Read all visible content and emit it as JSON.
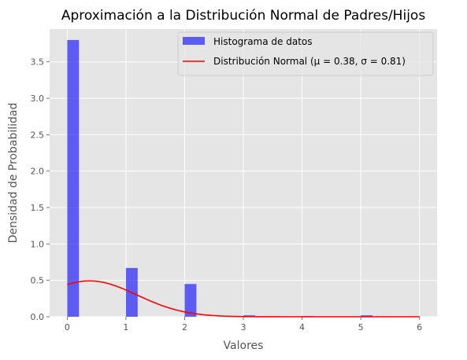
{
  "chart_data": {
    "type": "bar",
    "title": "Aproximación a la Distribución Normal de Padres/Hijos",
    "xlabel": "Valores",
    "ylabel": "Densidad de Probabilidad",
    "xlim": [
      -0.3,
      6.3
    ],
    "ylim": [
      0,
      3.95
    ],
    "xticks": [
      0,
      1,
      2,
      3,
      4,
      5,
      6
    ],
    "xtick_labels": [
      "0",
      "1",
      "2",
      "3",
      "4",
      "5",
      "6"
    ],
    "yticks": [
      0.0,
      0.5,
      1.0,
      1.5,
      2.0,
      2.5,
      3.0,
      3.5
    ],
    "ytick_labels": [
      "0.0",
      "0.5",
      "1.0",
      "1.5",
      "2.0",
      "2.5",
      "3.0",
      "3.5"
    ],
    "grid": true,
    "legend_position": "top-right",
    "histogram": {
      "name": "Histograma de datos",
      "color": "#0000ff",
      "bin_width": 0.2,
      "bins": [
        {
          "x0": 0.0,
          "x1": 0.2,
          "value": 3.8
        },
        {
          "x0": 1.0,
          "x1": 1.2,
          "value": 0.67
        },
        {
          "x0": 2.0,
          "x1": 2.2,
          "value": 0.45
        },
        {
          "x0": 3.0,
          "x1": 3.2,
          "value": 0.02
        },
        {
          "x0": 4.0,
          "x1": 4.2,
          "value": 0.01
        },
        {
          "x0": 5.0,
          "x1": 5.2,
          "value": 0.02
        }
      ]
    },
    "normal_curve": {
      "name": "Distribución Normal (μ = 0.38, σ = 0.81)",
      "mu": 0.38,
      "sigma": 0.81,
      "x_range": [
        0,
        6
      ],
      "color": "#ff0000"
    },
    "background_color": "#e5e5e5",
    "grid_color": "#ffffff"
  }
}
